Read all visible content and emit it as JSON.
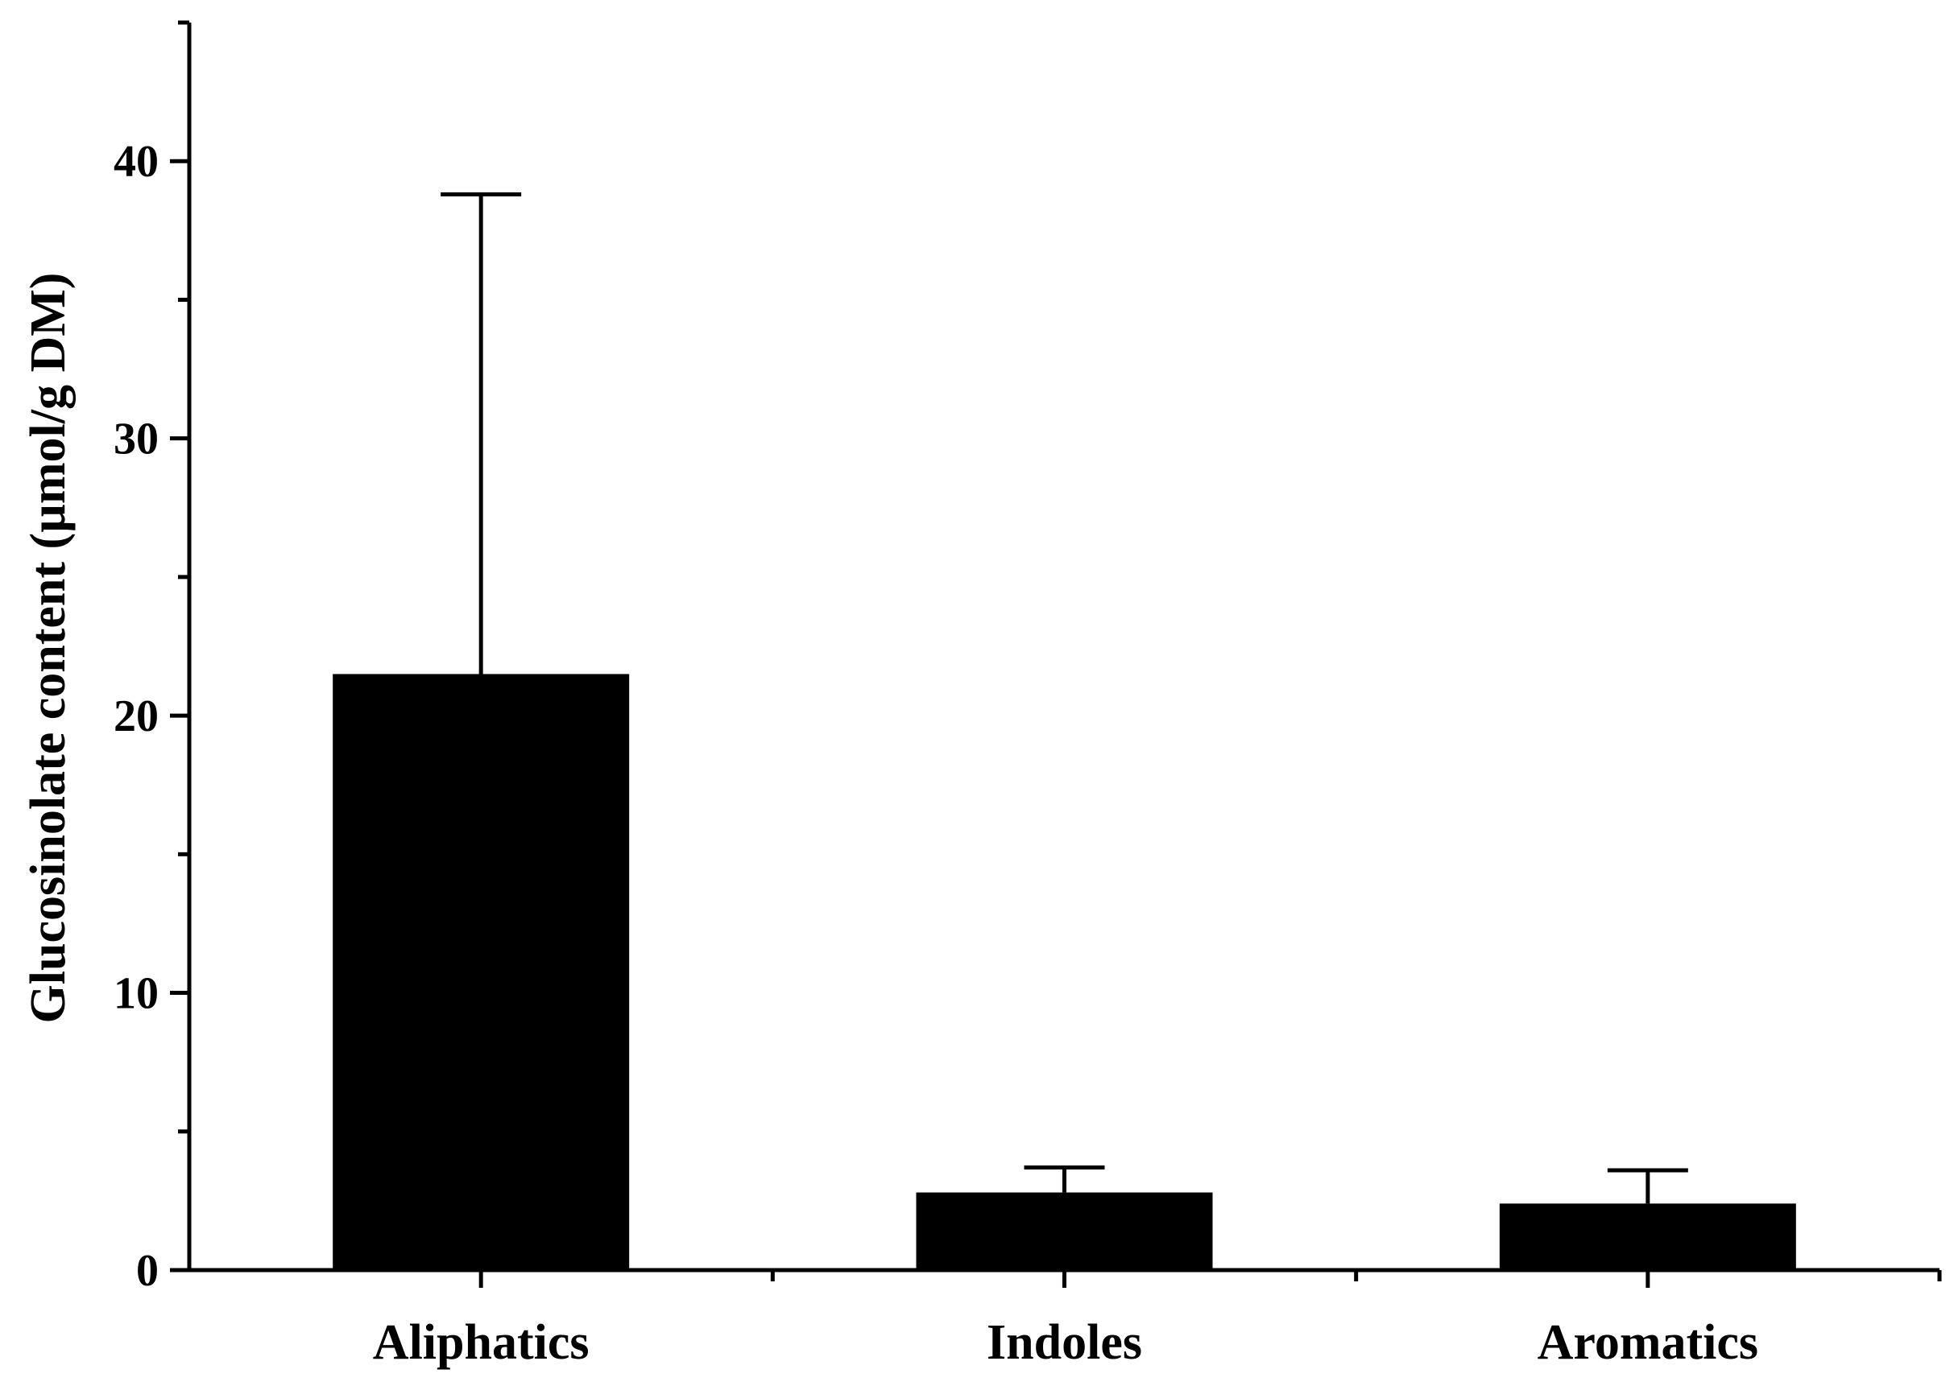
{
  "chart_data": {
    "type": "bar",
    "title": "",
    "xlabel": "",
    "ylabel": "Glucosinolate content (µmol/g DM)",
    "categories": [
      "Aliphatics",
      "Indoles",
      "Aromatics"
    ],
    "values": [
      21.5,
      2.8,
      2.4
    ],
    "error_upper": [
      38.8,
      3.7,
      3.6
    ],
    "ylim": [
      0,
      45
    ],
    "yticks": [
      0,
      10,
      20,
      30,
      40
    ],
    "ytick_labels": [
      "0",
      "10",
      "20",
      "30",
      "40"
    ],
    "grid": false,
    "legend": "none",
    "bar_color": "#000000"
  }
}
